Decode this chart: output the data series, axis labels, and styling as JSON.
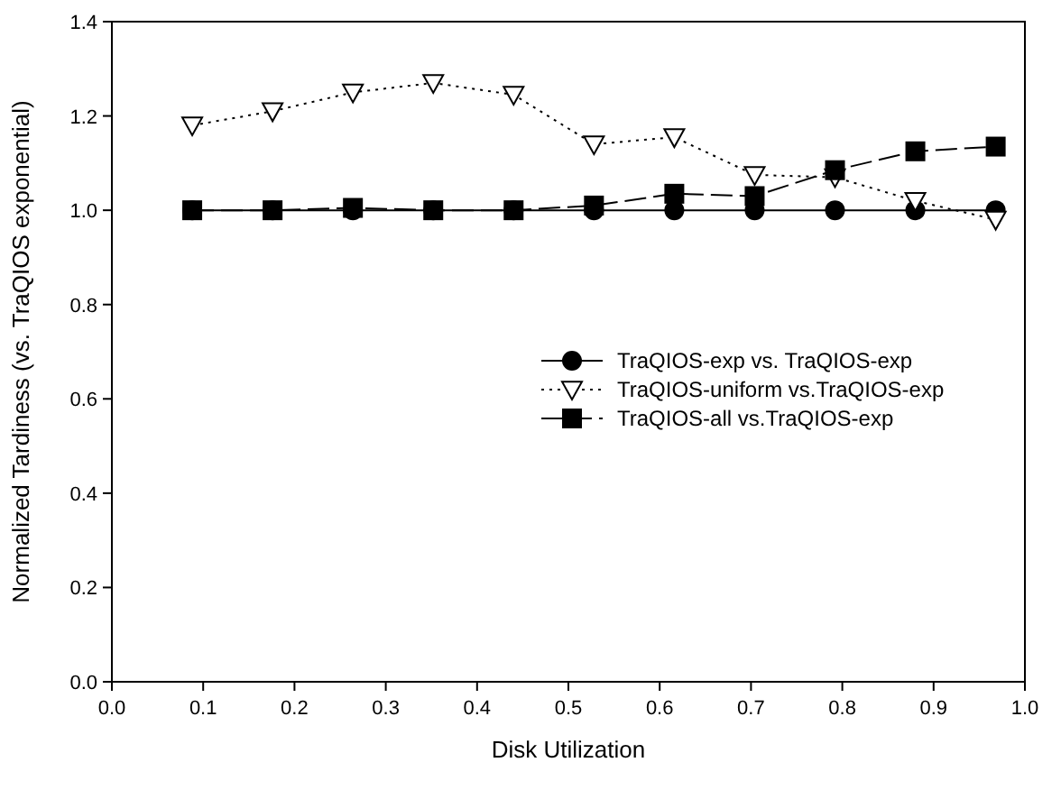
{
  "chart_data": {
    "type": "line",
    "xlabel": "Disk Utilization",
    "ylabel": "Normalized Tardiness (vs. TraQIOS exponential)",
    "x": [
      0.088,
      0.176,
      0.264,
      0.352,
      0.44,
      0.528,
      0.616,
      0.704,
      0.792,
      0.88,
      0.968
    ],
    "series": [
      {
        "name": "TraQIOS-exp vs. TraQIOS-exp",
        "color": "#000000",
        "marker": "circle",
        "line_style": "solid",
        "values": [
          1,
          1,
          1,
          1,
          1,
          1,
          1,
          1,
          1,
          1,
          1
        ]
      },
      {
        "name": "TraQIOS-uniform vs.TraQIOS-exp",
        "color": "#000000",
        "marker": "triangle",
        "line_style": "dotted",
        "values": [
          1.18,
          1.21,
          1.25,
          1.27,
          1.245,
          1.14,
          1.155,
          1.075,
          1.07,
          1.02,
          0.98
        ]
      },
      {
        "name": "TraQIOS-all vs.TraQIOS-exp",
        "color": "#000000",
        "marker": "square",
        "line_style": "dashed",
        "values": [
          1.0,
          1.0,
          1.005,
          1.0,
          1.0,
          1.01,
          1.035,
          1.03,
          1.085,
          1.125,
          1.135
        ]
      }
    ],
    "xlim": [
      0,
      1
    ],
    "xticks": [
      {
        "value": 0,
        "label": "0.0"
      },
      0.1,
      0.2,
      0.3,
      0.4,
      0.5,
      0.6,
      0.7,
      0.8,
      0.9,
      {
        "value": 1,
        "label": "1.0"
      }
    ],
    "ylim": [
      0,
      1.4
    ],
    "yticks": [
      {
        "value": 0,
        "label": "0.0"
      },
      0.2,
      0.4,
      0.6,
      0.8,
      {
        "value": 1,
        "label": "1.0"
      },
      1.2,
      1.4
    ],
    "grid": false,
    "legend": "right"
  }
}
